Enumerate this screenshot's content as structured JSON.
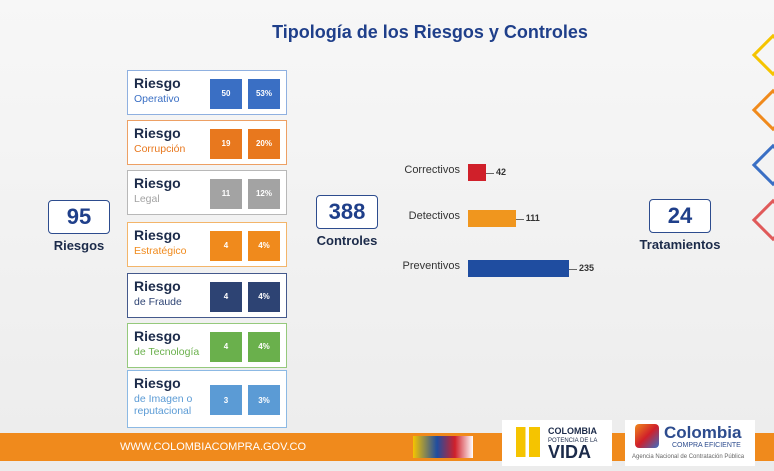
{
  "title": "Tipología de los Riesgos y Controles",
  "totals": {
    "riesgos": {
      "value": 95,
      "label": "Riesgos"
    },
    "controles": {
      "value": 388,
      "label": "Controles"
    },
    "tratamientos": {
      "value": 24,
      "label": "Tratamientos"
    }
  },
  "risks": [
    {
      "title": "Riesgo",
      "subtitle": "Operativo",
      "count": 50,
      "percent": "53%",
      "color": "#3a6fc4",
      "border": "#8fb0e0"
    },
    {
      "title": "Riesgo",
      "subtitle": "Corrupción",
      "count": 19,
      "percent": "20%",
      "color": "#e8781e",
      "border": "#eda064"
    },
    {
      "title": "Riesgo",
      "subtitle": "Legal",
      "count": 11,
      "percent": "12%",
      "color": "#a3a3a3",
      "border": "#b8b8b8"
    },
    {
      "title": "Riesgo",
      "subtitle": "Estratégico",
      "count": 4,
      "percent": "4%",
      "color": "#f08a1c",
      "border": "#f3b56a"
    },
    {
      "title": "Riesgo",
      "subtitle": "de Fraude",
      "count": 4,
      "percent": "4%",
      "color": "#2d4373",
      "border": "#44598c"
    },
    {
      "title": "Riesgo",
      "subtitle": "de Tecnología",
      "count": 4,
      "percent": "4%",
      "color": "#6ab04c",
      "border": "#95c97c"
    },
    {
      "title": "Riesgo",
      "subtitle": "de Imagen o reputacional",
      "count": 3,
      "percent": "3%",
      "color": "#5b9bd5",
      "border": "#8cb9e4"
    }
  ],
  "chart_data": {
    "type": "bar",
    "orientation": "horizontal",
    "categories": [
      "Correctivos",
      "Detectivos",
      "Preventivos"
    ],
    "values": [
      42,
      111,
      235
    ],
    "colors": [
      "#d0202a",
      "#f0961e",
      "#1f4da0"
    ]
  },
  "footer": {
    "url": "WWW.COLOMBIACOMPRA.GOV.CO",
    "logo1": [
      "COLOMBIA",
      "POTENCIA DE LA",
      "VIDA"
    ],
    "logo2": [
      "Colombia",
      "COMPRA EFICIENTE",
      "Agencia Nacional de Contratación Pública"
    ]
  }
}
